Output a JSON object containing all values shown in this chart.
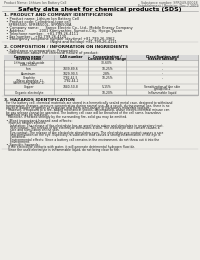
{
  "bg_color": "#eeede8",
  "header_top_left": "Product Name: Lithium Ion Battery Cell",
  "header_top_right": "Substance number: SFR049-00018\nEstablishment / Revision: Dec.7.2009",
  "main_title": "Safety data sheet for chemical products (SDS)",
  "section1_title": "1. PRODUCT AND COMPANY IDENTIFICATION",
  "section1_lines": [
    "  • Product name: Lithium Ion Battery Cell",
    "  • Product code: Cylindrical-type cell",
    "    SFR86500, SFR86500L, SFR86500A",
    "  • Company name:      Sanyo Electric Co., Ltd., Mobile Energy Company",
    "  • Address:             2001 Kamiyashiro, Sumoto-City, Hyogo, Japan",
    "  • Telephone number:   +81-799-26-4111",
    "  • Fax number:   +81-799-26-4120",
    "  • Emergency telephone number (daytime) +81-799-26-3962",
    "                                         (Night and holiday) +81-799-26-4121"
  ],
  "section2_title": "2. COMPOSITION / INFORMATION ON INGREDIENTS",
  "section2_sub1": "  • Substance or preparation: Preparation",
  "section2_sub2": "    Information about the chemical nature of product:",
  "table_col_names1": [
    "Common name /",
    "CAS number",
    "Concentration /",
    "Classification and"
  ],
  "table_col_names2": [
    "Several name",
    "",
    "Concentration range",
    "hazard labeling"
  ],
  "table_rows": [
    [
      "Lithium cobalt oxide\n(LiMn-CoO2)",
      "-",
      "30-60%",
      "-"
    ],
    [
      "Iron",
      "7439-89-6",
      "10-25%",
      "-"
    ],
    [
      "Aluminum",
      "7429-90-5",
      "2-8%",
      "-"
    ],
    [
      "Graphite\n(Meso graphite-1)\n(Artificial graphite-1)",
      "7782-42-5\n7782-44-2",
      "10-25%",
      "-"
    ],
    [
      "Copper",
      "7440-50-8",
      "5-15%",
      "Sensitization of the skin\ngroup No.2"
    ],
    [
      "Organic electrolyte",
      "-",
      "10-20%",
      "Inflammable liquid"
    ]
  ],
  "section3_title": "3. HAZARDS IDENTIFICATION",
  "section3_para": [
    "  For the battery cell, chemical materials are stored in a hermetically sealed metal case, designed to withstand",
    "  temperature changes, pressure-concentration during normal use. As a result, during normal use, there is no",
    "  physical danger of ignition or explosion and there is no danger of hazardous materials leakage.",
    "    However, if exposed to a fire, added mechanical shocks, decomposed, undue electro-chemical misuse can",
    "  be gas release cannot be operated. The battery cell case will be breached of the cell some, hazardous",
    "  materials may be released.",
    "    Moreover, if heated strongly by the surrounding fire, solid gas may be emitted."
  ],
  "section3_bullet1": "  • Most important hazard and effects:",
  "section3_human_title": "    Human health effects:",
  "section3_human_lines": [
    "      Inhalation: The release of the electrolyte has an anesthesia action and stimulates in respiratory tract.",
    "      Skin contact: The release of the electrolyte stimulates a skin. The electrolyte skin contact causes a",
    "      sore and stimulation on the skin.",
    "      Eye contact: The release of the electrolyte stimulates eyes. The electrolyte eye contact causes a sore",
    "      and stimulation on the eye. Especially, a substance that causes a strong inflammation of the eye is",
    "      contained.",
    "      Environmental effects: Since a battery cell remains in the environment, do not throw out it into the",
    "      environment."
  ],
  "section3_bullet2": "  • Specific hazards:",
  "section3_specific_lines": [
    "    If the electrolyte contacts with water, it will generate detrimental hydrogen fluoride.",
    "    Since the used electrolyte is inflammable liquid, do not bring close to fire."
  ],
  "text_color": "#1a1a1a",
  "border_color": "#999999",
  "light_border": "#bbbbbb",
  "header_bg": "#d8d8d8"
}
